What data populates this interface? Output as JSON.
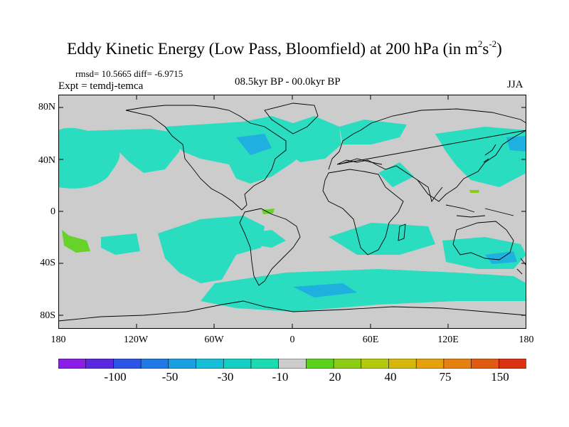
{
  "title": {
    "main": "Eddy Kinetic Energy (Low Pass, Bloomfield) at 200 hPa (in m",
    "sup1": "2",
    "mid": "s",
    "sup2": "-2",
    "tail": ")"
  },
  "stats": "rmsd= 10.5665 diff= -6.9715",
  "expt": "Expt = temdj-temca",
  "period": "08.5kyr BP - 00.0kyr BP",
  "season": "JJA",
  "y_ticks": [
    "80N",
    "40N",
    "0",
    "40S",
    "80S"
  ],
  "x_ticks": [
    "180",
    "120W",
    "60W",
    "0",
    "60E",
    "120E",
    "180"
  ],
  "colorbar": {
    "labels": [
      "-100",
      "-50",
      "-30",
      "-10",
      "20",
      "40",
      "75",
      "150"
    ],
    "colors": [
      "#8a1ee6",
      "#5a28e0",
      "#2a55e6",
      "#1f7ae6",
      "#1aa0e0",
      "#16bed8",
      "#14cfc4",
      "#1adcb0",
      "#cccccc",
      "#5ad21e",
      "#8ccc14",
      "#b4c80e",
      "#d6b70c",
      "#e6a00c",
      "#e6800e",
      "#e05a12",
      "#dc3212"
    ]
  },
  "map": {
    "background": "#cccccc",
    "field_colors": {
      "cyan": "#2adcc0",
      "blue": "#1fb0e0",
      "green": "#66d22a",
      "green_light": "#8ccc14"
    }
  }
}
